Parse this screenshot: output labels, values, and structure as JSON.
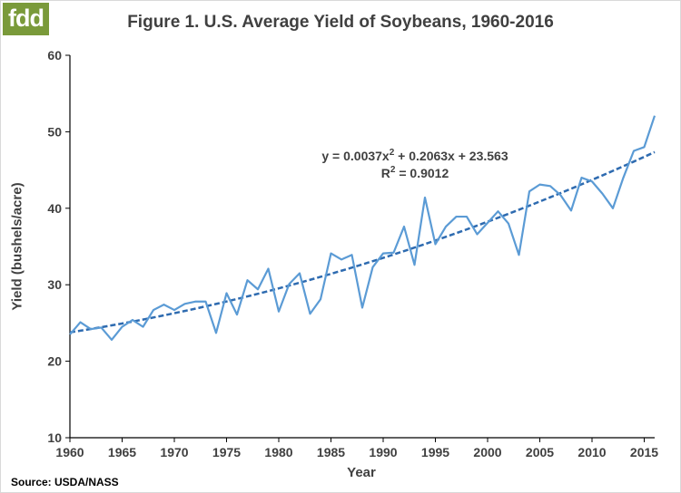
{
  "logo": {
    "text": "fdd"
  },
  "title": "Figure 1. U.S. Average Yield of Soybeans, 1960-2016",
  "source": "Source: USDA/NASS",
  "chart_data": {
    "type": "line",
    "title": "Figure 1. U.S. Average Yield of Soybeans, 1960-2016",
    "xlabel": "Year",
    "ylabel": "Yield (bushels/acre)",
    "xlim": [
      1960,
      2016
    ],
    "ylim": [
      10,
      60
    ],
    "x_ticks": [
      1960,
      1965,
      1970,
      1975,
      1980,
      1985,
      1990,
      1995,
      2000,
      2005,
      2010,
      2015
    ],
    "y_ticks": [
      10,
      20,
      30,
      40,
      50,
      60
    ],
    "grid": false,
    "line_color": "#5b9bd5",
    "trend_color": "#2e6bb0",
    "series": [
      {
        "x": [
          1960,
          1961,
          1962,
          1963,
          1964,
          1965,
          1966,
          1967,
          1968,
          1969,
          1970,
          1971,
          1972,
          1973,
          1974,
          1975,
          1976,
          1977,
          1978,
          1979,
          1980,
          1981,
          1982,
          1983,
          1984,
          1985,
          1986,
          1987,
          1988,
          1989,
          1990,
          1991,
          1992,
          1993,
          1994,
          1995,
          1996,
          1997,
          1998,
          1999,
          2000,
          2001,
          2002,
          2003,
          2004,
          2005,
          2006,
          2007,
          2008,
          2009,
          2010,
          2011,
          2012,
          2013,
          2014,
          2015,
          2016
        ],
        "values": [
          23.5,
          25.1,
          24.2,
          24.4,
          22.8,
          24.5,
          25.4,
          24.5,
          26.7,
          27.4,
          26.7,
          27.5,
          27.8,
          27.8,
          23.7,
          28.9,
          26.1,
          30.6,
          29.4,
          32.1,
          26.5,
          30.1,
          31.5,
          26.2,
          28.1,
          34.1,
          33.3,
          33.9,
          27.0,
          32.3,
          34.1,
          34.2,
          37.6,
          32.6,
          41.4,
          35.3,
          37.6,
          38.9,
          38.9,
          36.6,
          38.1,
          39.6,
          38.0,
          33.9,
          42.2,
          43.1,
          42.9,
          41.7,
          39.7,
          44.0,
          43.5,
          41.9,
          40.0,
          44.0,
          47.5,
          48.0,
          52.1
        ]
      },
      {
        "trendline": "polynomial-2",
        "coefficients": {
          "a": 0.0037,
          "b": 0.2063,
          "c": 23.563
        },
        "index_start": 1960
      }
    ],
    "annotation": {
      "equation_prefix": "y = 0.0037x",
      "equation_exp": "2",
      "equation_suffix": " + 0.2063x + 23.563",
      "r2_prefix": "R",
      "r2_exp": "2",
      "r2_suffix": " = 0.9012"
    }
  }
}
